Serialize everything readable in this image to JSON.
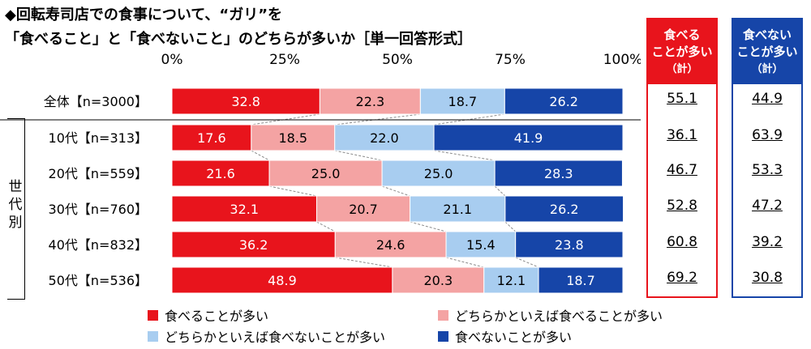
{
  "title": {
    "line1": "◆回転寿司店での食事について、“ガリ”を",
    "line2": "「食べること」と「食べないこと」のどちらが多いか［単一回答形式］"
  },
  "colors": {
    "eat": "#e8141c",
    "rather_eat": "#f4a3a3",
    "rather_not_eat": "#a8cdf0",
    "not_eat": "#1645a8"
  },
  "chart_data": {
    "type": "bar",
    "orientation": "horizontal",
    "stacked": true,
    "xlim": [
      0,
      100
    ],
    "x_ticks": [
      "0%",
      "25%",
      "50%",
      "75%",
      "100%"
    ],
    "categories": [
      "全体【n=3000】",
      "10代【n=313】",
      "20代【n=559】",
      "30代【n=760】",
      "40代【n=832】",
      "50代【n=536】"
    ],
    "series": [
      {
        "name": "食べることが多い",
        "color": "#e8141c",
        "label_color": "#ffffff",
        "values": [
          32.8,
          17.6,
          21.6,
          32.1,
          36.2,
          48.9
        ]
      },
      {
        "name": "どちらかといえば食べることが多い",
        "color": "#f4a3a3",
        "label_color": "#000000",
        "values": [
          22.3,
          18.5,
          25.0,
          20.7,
          24.6,
          20.3
        ]
      },
      {
        "name": "どちらかといえば食べないことが多い",
        "color": "#a8cdf0",
        "label_color": "#000000",
        "values": [
          18.7,
          22.0,
          25.0,
          21.1,
          15.4,
          12.1
        ]
      },
      {
        "name": "食べないことが多い",
        "color": "#1645a8",
        "label_color": "#ffffff",
        "values": [
          26.2,
          41.9,
          28.3,
          26.2,
          23.8,
          18.7
        ]
      }
    ],
    "group_label": "世代別"
  },
  "summary": {
    "eat": {
      "header1": "食べる",
      "header2": "ことが多い",
      "header3": "（計）",
      "values": [
        "55.1",
        "36.1",
        "46.7",
        "52.8",
        "60.8",
        "69.2"
      ]
    },
    "not_eat": {
      "header1": "食べない",
      "header2": "ことが多い",
      "header3": "（計）",
      "values": [
        "44.9",
        "63.9",
        "53.3",
        "47.2",
        "39.2",
        "30.8"
      ]
    }
  },
  "legend": [
    {
      "label": "食べることが多い",
      "color": "#e8141c"
    },
    {
      "label": "どちらかといえば食べることが多い",
      "color": "#f4a3a3"
    },
    {
      "label": "どちらかといえば食べないことが多い",
      "color": "#a8cdf0"
    },
    {
      "label": "食べないことが多い",
      "color": "#1645a8"
    }
  ]
}
